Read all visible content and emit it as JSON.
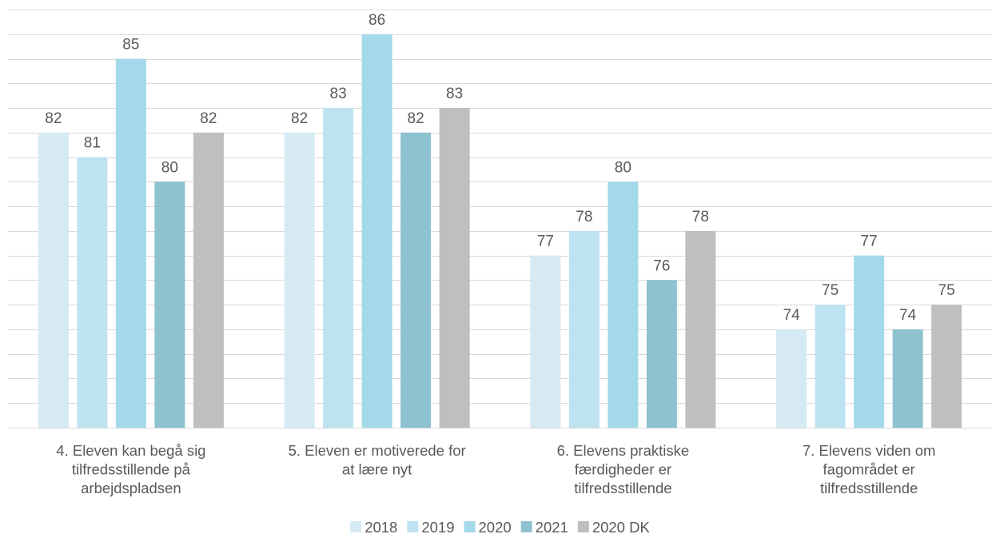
{
  "chart_data": {
    "type": "bar",
    "categories": [
      [
        "4. Eleven kan begå sig",
        "tilfredsstillende på",
        "arbejdspladsen"
      ],
      [
        "5. Eleven er motiverede for",
        "at lære nyt"
      ],
      [
        "6. Elevens praktiske",
        "færdigheder er",
        "tilfredsstillende"
      ],
      [
        "7. Elevens viden om",
        "fagområdet er",
        "tilfredsstillende"
      ]
    ],
    "series": [
      {
        "name": "2018",
        "color": "#d6eaf4",
        "values": [
          82,
          82,
          77,
          74
        ]
      },
      {
        "name": "2019",
        "color": "#bde3f1",
        "values": [
          81,
          83,
          78,
          75
        ]
      },
      {
        "name": "2020",
        "color": "#a4d9ea",
        "values": [
          85,
          86,
          80,
          77
        ]
      },
      {
        "name": "2021",
        "color": "#8ec2d1",
        "values": [
          80,
          82,
          76,
          74
        ]
      },
      {
        "name": "2020 DK",
        "color": "#bfbfbf",
        "values": [
          82,
          83,
          78,
          75
        ]
      }
    ],
    "ylim": [
      70,
      87
    ],
    "gridlines": true,
    "legend_position": "bottom",
    "title": "",
    "xlabel": "",
    "ylabel": ""
  }
}
